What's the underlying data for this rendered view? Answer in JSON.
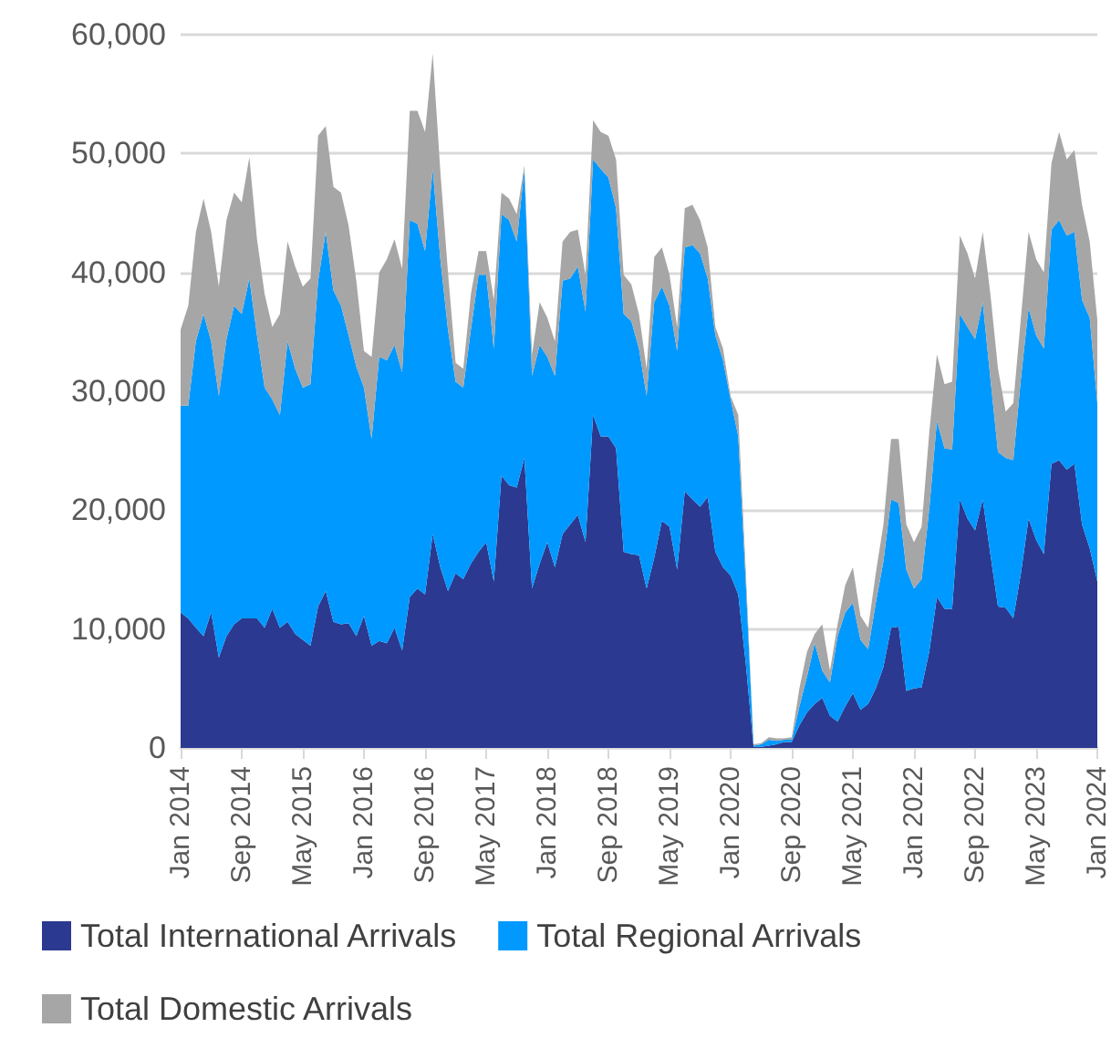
{
  "chart_data": {
    "type": "area",
    "stacked": true,
    "grid": "y",
    "legend": "bottom",
    "ylim": [
      0,
      60000
    ],
    "yticks": [
      {
        "value": 0,
        "label": "0"
      },
      {
        "value": 10000,
        "label": "10,000"
      },
      {
        "value": 20000,
        "label": "20,000"
      },
      {
        "value": 30000,
        "label": "30,000"
      },
      {
        "value": 40000,
        "label": "40,000"
      },
      {
        "value": 50000,
        "label": "50,000"
      },
      {
        "value": 60000,
        "label": "60,000"
      }
    ],
    "categories": [
      "Jan 2014",
      null,
      null,
      null,
      null,
      null,
      null,
      null,
      "Sep 2014",
      null,
      null,
      null,
      null,
      null,
      null,
      null,
      "May 2015",
      null,
      null,
      null,
      null,
      null,
      null,
      null,
      "Jan 2016",
      null,
      null,
      null,
      null,
      null,
      null,
      null,
      "Sep 2016",
      null,
      null,
      null,
      null,
      null,
      null,
      null,
      "May 2017",
      null,
      null,
      null,
      null,
      null,
      null,
      null,
      "Jan 2018",
      null,
      null,
      null,
      null,
      null,
      null,
      null,
      "Sep 2018",
      null,
      null,
      null,
      null,
      null,
      null,
      null,
      "May 2019",
      null,
      null,
      null,
      null,
      null,
      null,
      null,
      "Jan 2020",
      null,
      null,
      null,
      null,
      null,
      null,
      null,
      "Sep 2020",
      null,
      null,
      null,
      null,
      null,
      null,
      null,
      "May 2021",
      null,
      null,
      null,
      null,
      null,
      null,
      null,
      "Jan 2022",
      null,
      null,
      null,
      null,
      null,
      null,
      null,
      "Sep 2022",
      null,
      null,
      null,
      null,
      null,
      null,
      null,
      "May 2023",
      null,
      null,
      null,
      null,
      null,
      null,
      null,
      "Jan 2024"
    ],
    "series": [
      {
        "name": "Total International Arrivals",
        "color": "#2b3990",
        "values": [
          11400,
          10900,
          10100,
          9400,
          11400,
          7600,
          9400,
          10400,
          10900,
          10900,
          10900,
          10100,
          11700,
          10100,
          10600,
          9600,
          9100,
          8600,
          11900,
          13200,
          10600,
          10400,
          10500,
          9400,
          11100,
          8600,
          9000,
          8800,
          10100,
          8200,
          12700,
          13400,
          12900,
          18000,
          15200,
          13200,
          14700,
          14200,
          15500,
          16500,
          17300,
          14000,
          22900,
          22100,
          21900,
          24400,
          13400,
          15500,
          17300,
          15200,
          18000,
          18800,
          19600,
          17300,
          28000,
          26200,
          26200,
          25200,
          16500,
          16300,
          16200,
          13400,
          16000,
          19100,
          18600,
          15000,
          21600,
          20900,
          20300,
          21100,
          16500,
          15200,
          14500,
          12900,
          7000,
          100,
          100,
          200,
          300,
          500,
          500,
          1900,
          3000,
          3700,
          4200,
          2700,
          2200,
          3500,
          4600,
          3200,
          3700,
          5000,
          6800,
          10100,
          10200,
          4800,
          5000,
          5100,
          8100,
          12700,
          11700,
          11700,
          20900,
          19300,
          18300,
          20900,
          16300,
          11900,
          11800,
          10900,
          14700,
          19300,
          17500,
          16300,
          23900,
          24200,
          23400,
          23900,
          18800,
          16800,
          14000
        ]
      },
      {
        "name": "Total Regional Arrivals",
        "color": "#0099ff",
        "values": [
          17400,
          17900,
          24100,
          27100,
          22800,
          22000,
          25000,
          26800,
          25600,
          28600,
          23800,
          20200,
          17600,
          17900,
          23600,
          22300,
          21200,
          22000,
          27400,
          30200,
          27900,
          26800,
          24200,
          22700,
          19200,
          17400,
          23900,
          23800,
          23800,
          23400,
          31700,
          30700,
          28900,
          30700,
          25900,
          22000,
          16100,
          16100,
          19700,
          23300,
          22500,
          19600,
          22000,
          22300,
          20700,
          24300,
          17900,
          18400,
          15600,
          16100,
          21300,
          20700,
          20900,
          19400,
          21500,
          22500,
          21800,
          20200,
          20000,
          19600,
          17400,
          16200,
          21500,
          19700,
          18600,
          18400,
          20500,
          21400,
          21300,
          18400,
          18200,
          17400,
          14800,
          13300,
          6700,
          100,
          200,
          500,
          300,
          200,
          200,
          1600,
          3000,
          5100,
          2300,
          2800,
          7200,
          7900,
          7600,
          5900,
          4600,
          7200,
          8900,
          10800,
          10400,
          10200,
          8400,
          9100,
          12000,
          14800,
          13500,
          13400,
          15600,
          16100,
          16100,
          16600,
          14800,
          13000,
          12600,
          13300,
          16400,
          17700,
          17200,
          17300,
          19700,
          20200,
          19700,
          19500,
          18900,
          19400,
          15000
        ]
      },
      {
        "name": "Total Domestic Arrivals",
        "color": "#a6a6a6",
        "values": [
          6400,
          8400,
          9200,
          9700,
          9200,
          9200,
          10000,
          9500,
          9400,
          10200,
          8100,
          7900,
          6100,
          8500,
          8400,
          8600,
          8500,
          8900,
          12200,
          8900,
          8700,
          9500,
          9200,
          7200,
          3100,
          6900,
          7100,
          8500,
          8900,
          8700,
          9200,
          9500,
          10000,
          9700,
          7400,
          4800,
          1600,
          1600,
          3000,
          2000,
          2000,
          4100,
          1800,
          1800,
          2300,
          300,
          1800,
          3600,
          3300,
          2900,
          3300,
          3900,
          3100,
          3100,
          3300,
          3100,
          3500,
          4100,
          3300,
          3100,
          2900,
          2300,
          3800,
          3300,
          2600,
          2000,
          3300,
          3400,
          2800,
          2600,
          700,
          1000,
          300,
          1800,
          1000,
          100,
          100,
          200,
          200,
          100,
          200,
          1500,
          2100,
          800,
          3900,
          1000,
          1000,
          2300,
          3000,
          2000,
          1800,
          2500,
          3100,
          5100,
          5400,
          3800,
          3900,
          4400,
          6400,
          5600,
          5400,
          5700,
          6600,
          6200,
          5100,
          5900,
          7100,
          7000,
          3900,
          4800,
          5100,
          6400,
          6400,
          6400,
          5600,
          7400,
          6400,
          6900,
          8000,
          6400,
          7000
        ]
      }
    ]
  }
}
